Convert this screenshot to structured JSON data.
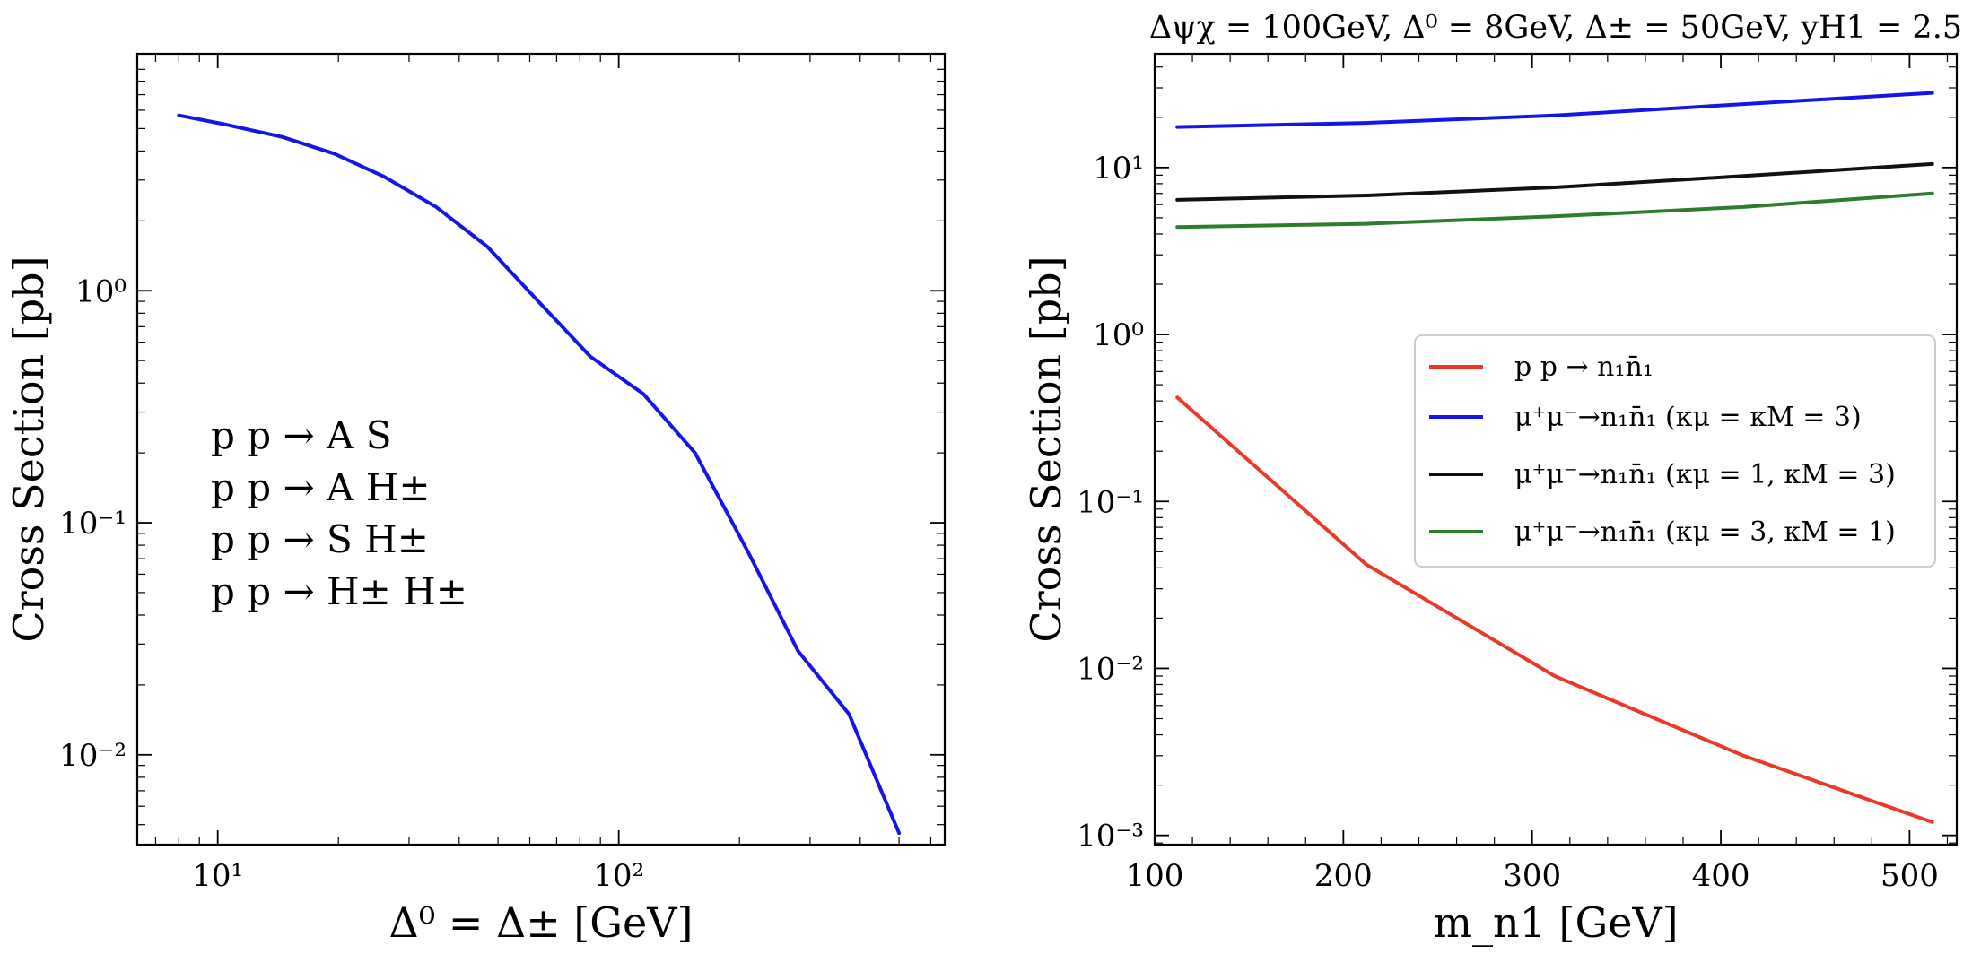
{
  "chart_data": [
    {
      "type": "line",
      "xscale": "log",
      "yscale": "log",
      "xlim": [
        6.3,
        650
      ],
      "ylim": [
        0.0041,
        10.5
      ],
      "xlabel": "Δ⁰ = Δ±  [GeV]",
      "ylabel": "Cross Section [pb]",
      "title": "",
      "x_ticks": [
        {
          "value": 10,
          "label": "10¹"
        },
        {
          "value": 100,
          "label": "10²"
        }
      ],
      "y_ticks": [
        {
          "value": 1,
          "label": "10⁰"
        },
        {
          "value": 0.1,
          "label": "10⁻¹"
        },
        {
          "value": 0.01,
          "label": "10⁻²"
        }
      ],
      "annotations": [
        "p p → A S",
        "p p → A H±",
        "p p → S H±",
        "p p → H± H±"
      ],
      "series": [
        {
          "name": "cross section",
          "color": "#1515e6",
          "x": [
            8,
            10.5,
            14.5,
            19.5,
            26,
            35,
            47,
            63,
            85,
            115,
            155,
            210,
            280,
            375,
            500
          ],
          "y": [
            5.7,
            5.2,
            4.6,
            3.9,
            3.1,
            2.3,
            1.55,
            0.9,
            0.52,
            0.36,
            0.2,
            0.075,
            0.028,
            0.015,
            0.0046
          ]
        }
      ]
    },
    {
      "type": "line",
      "xscale": "linear",
      "yscale": "log",
      "xlim": [
        100,
        525
      ],
      "ylim": [
        0.00088,
        48
      ],
      "xlabel": "m_n1 [GeV]",
      "ylabel": "Cross Section [pb]",
      "title": "Δψχ = 100GeV, Δ⁰ = 8GeV, Δ± = 50GeV, yH1 = 2.5",
      "x_ticks": [
        {
          "value": 100,
          "label": "100"
        },
        {
          "value": 200,
          "label": "200"
        },
        {
          "value": 300,
          "label": "300"
        },
        {
          "value": 400,
          "label": "400"
        },
        {
          "value": 500,
          "label": "500"
        }
      ],
      "y_ticks": [
        {
          "value": 10,
          "label": "10¹"
        },
        {
          "value": 1,
          "label": "10⁰"
        },
        {
          "value": 0.1,
          "label": "10⁻¹"
        },
        {
          "value": 0.01,
          "label": "10⁻²"
        },
        {
          "value": 0.001,
          "label": "10⁻³"
        }
      ],
      "legend_position": "center-right",
      "series": [
        {
          "name": "p p → n₁n̄₁",
          "color": "#e8392a",
          "x": [
            112,
            212,
            312,
            412,
            512
          ],
          "y": [
            0.42,
            0.042,
            0.009,
            0.003,
            0.0012
          ]
        },
        {
          "name": "μ⁺μ⁻→n₁n̄₁ (κμ = κM = 3)",
          "color": "#1515e6",
          "x": [
            112,
            212,
            312,
            412,
            512
          ],
          "y": [
            17.5,
            18.5,
            20.5,
            24,
            28
          ]
        },
        {
          "name": "μ⁺μ⁻→n₁n̄₁ (κμ = 1, κM = 3)",
          "color": "#111111",
          "x": [
            112,
            212,
            312,
            412,
            512
          ],
          "y": [
            6.4,
            6.8,
            7.6,
            8.9,
            10.5
          ]
        },
        {
          "name": "μ⁺μ⁻→n₁n̄₁ (κμ = 3, κM = 1)",
          "color": "#2e7d2e",
          "x": [
            112,
            212,
            312,
            412,
            512
          ],
          "y": [
            4.4,
            4.6,
            5.1,
            5.8,
            7.0
          ]
        }
      ]
    }
  ]
}
